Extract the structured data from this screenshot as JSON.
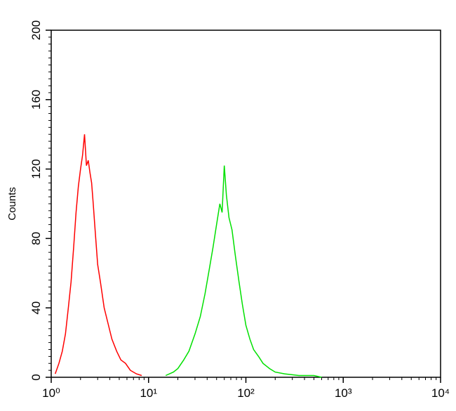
{
  "chart_data": {
    "type": "line",
    "y_label": "Counts",
    "x_scale": "log",
    "xlim": [
      1,
      10000
    ],
    "ylim": [
      0,
      200
    ],
    "xticks": [
      {
        "value": 1,
        "label": "10⁰"
      },
      {
        "value": 10,
        "label": "10¹"
      },
      {
        "value": 100,
        "label": "10²"
      },
      {
        "value": 1000,
        "label": "10³"
      },
      {
        "value": 10000,
        "label": "10⁴"
      }
    ],
    "yticks": [
      0,
      40,
      80,
      120,
      160,
      200
    ],
    "series": [
      {
        "color": "#ff0000",
        "x": [
          1.1,
          1.2,
          1.3,
          1.4,
          1.5,
          1.6,
          1.7,
          1.8,
          1.9,
          2.0,
          2.1,
          2.2,
          2.3,
          2.4,
          2.5,
          2.6,
          2.7,
          2.8,
          3.0,
          3.2,
          3.5,
          3.8,
          4.2,
          4.7,
          5.2,
          5.8,
          6.5,
          7.5,
          8.5
        ],
        "values": [
          2,
          8,
          15,
          25,
          40,
          55,
          75,
          95,
          110,
          120,
          128,
          140,
          122,
          125,
          118,
          112,
          100,
          88,
          65,
          55,
          40,
          32,
          22,
          15,
          10,
          8,
          4,
          2,
          1
        ]
      },
      {
        "color": "#00e000",
        "x": [
          15,
          18,
          20,
          23,
          26,
          30,
          34,
          38,
          42,
          46,
          50,
          54,
          57,
          60,
          63,
          67,
          72,
          78,
          85,
          92,
          100,
          110,
          120,
          135,
          150,
          175,
          200,
          250,
          350,
          500,
          600
        ],
        "values": [
          1,
          3,
          5,
          10,
          15,
          25,
          35,
          48,
          62,
          75,
          88,
          100,
          95,
          122,
          105,
          92,
          85,
          70,
          55,
          42,
          30,
          22,
          16,
          12,
          8,
          5,
          3,
          2,
          1,
          1,
          0
        ]
      }
    ]
  }
}
